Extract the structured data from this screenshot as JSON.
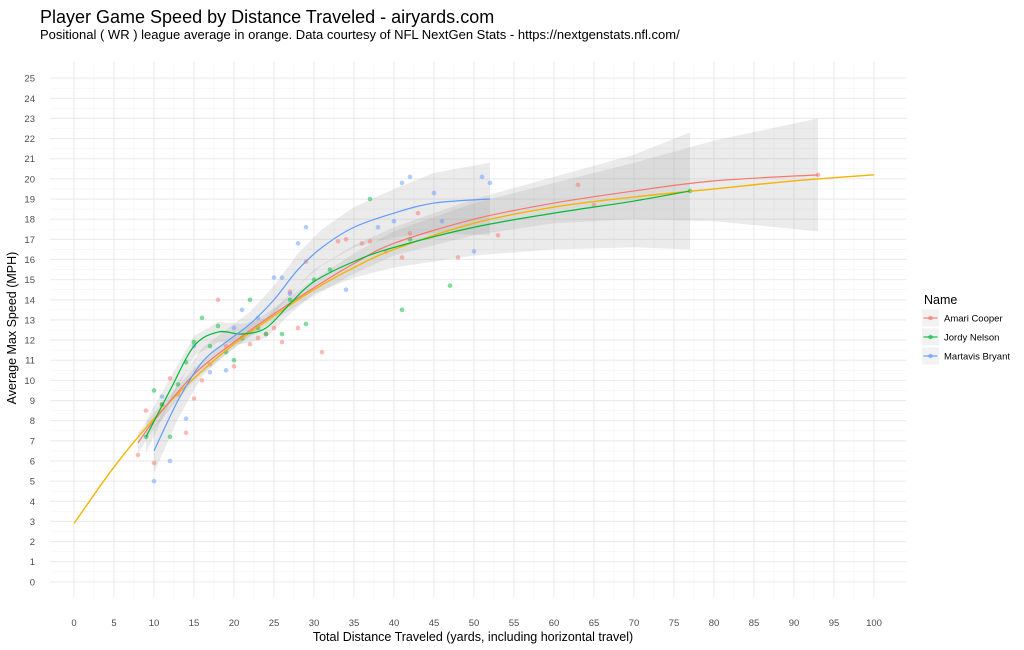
{
  "chart_data": {
    "type": "scatter",
    "title": "Player Game Speed by Distance Traveled - airyards.com",
    "subtitle": "Positional ( WR ) league average in orange. Data courtesy of NFL NextGen Stats - https://nextgenstats.nfl.com/",
    "xlabel": "Total Distance Traveled (yards, including horizontal travel)",
    "ylabel": "Average Max Speed (MPH)",
    "xlim": [
      -3,
      104
    ],
    "ylim": [
      -0.8,
      25.8
    ],
    "x_ticks": [
      0,
      5,
      10,
      15,
      20,
      25,
      30,
      35,
      40,
      45,
      50,
      55,
      60,
      65,
      70,
      75,
      80,
      85,
      90,
      95,
      100
    ],
    "y_ticks": [
      0,
      1,
      2,
      3,
      4,
      5,
      6,
      7,
      8,
      9,
      10,
      11,
      12,
      13,
      14,
      15,
      16,
      17,
      18,
      19,
      20,
      21,
      22,
      23,
      24,
      25
    ],
    "grid": true,
    "legend": {
      "title": "Name",
      "position": "right"
    },
    "league_average": {
      "color": "#F5B400",
      "x": [
        0,
        5,
        10,
        15,
        20,
        25,
        30,
        35,
        40,
        50,
        60,
        70,
        80,
        90,
        100
      ],
      "y": [
        2.9,
        5.7,
        8.1,
        10.1,
        11.8,
        13.2,
        14.5,
        15.6,
        16.5,
        17.8,
        18.6,
        19.1,
        19.5,
        19.9,
        20.2
      ]
    },
    "series": [
      {
        "name": "Amari Cooper",
        "color": "#F8766D",
        "points": [
          [
            8,
            6.3
          ],
          [
            9,
            8.5
          ],
          [
            10,
            5.9
          ],
          [
            11,
            8.8
          ],
          [
            12,
            10.1
          ],
          [
            13,
            9.3
          ],
          [
            14,
            7.4
          ],
          [
            15,
            9.1
          ],
          [
            16,
            10.0
          ],
          [
            17,
            10.8
          ],
          [
            18,
            14.0
          ],
          [
            19,
            11.7
          ],
          [
            20,
            10.7
          ],
          [
            22,
            11.8
          ],
          [
            23,
            12.1
          ],
          [
            24,
            12.3
          ],
          [
            25,
            12.6
          ],
          [
            26,
            11.9
          ],
          [
            27,
            14.4
          ],
          [
            28,
            12.6
          ],
          [
            29,
            15.9
          ],
          [
            31,
            11.4
          ],
          [
            33,
            16.9
          ],
          [
            34,
            17.0
          ],
          [
            36,
            16.8
          ],
          [
            37,
            16.9
          ],
          [
            39,
            16.4
          ],
          [
            41,
            16.1
          ],
          [
            42,
            17.3
          ],
          [
            43,
            18.3
          ],
          [
            48,
            16.1
          ],
          [
            53,
            17.2
          ],
          [
            63,
            19.7
          ],
          [
            65,
            18.7
          ],
          [
            93,
            20.2
          ]
        ],
        "fit": {
          "x": [
            8,
            10,
            15,
            20,
            25,
            30,
            35,
            40,
            50,
            60,
            70,
            80,
            93
          ],
          "y": [
            6.9,
            8.0,
            10.3,
            11.9,
            13.3,
            14.6,
            15.8,
            16.8,
            18.0,
            18.8,
            19.4,
            19.9,
            20.2
          ],
          "band": [
            0.5,
            0.4,
            0.3,
            0.3,
            0.3,
            0.4,
            0.5,
            0.6,
            0.8,
            1.0,
            1.4,
            2.0,
            2.8
          ]
        }
      },
      {
        "name": "Jordy Nelson",
        "color": "#00BA38",
        "points": [
          [
            9,
            7.2
          ],
          [
            10,
            9.5
          ],
          [
            11,
            8.8
          ],
          [
            12,
            7.2
          ],
          [
            13,
            9.8
          ],
          [
            14,
            10.9
          ],
          [
            15,
            11.9
          ],
          [
            16,
            13.1
          ],
          [
            17,
            11.7
          ],
          [
            18,
            12.7
          ],
          [
            19,
            11.4
          ],
          [
            20,
            11.0
          ],
          [
            21,
            12.1
          ],
          [
            22,
            14.0
          ],
          [
            23,
            12.6
          ],
          [
            24,
            12.3
          ],
          [
            26,
            12.3
          ],
          [
            27,
            14.0
          ],
          [
            29,
            12.8
          ],
          [
            30,
            15.0
          ],
          [
            32,
            15.5
          ],
          [
            37,
            19.0
          ],
          [
            41,
            13.5
          ],
          [
            42,
            17.0
          ],
          [
            47,
            14.7
          ],
          [
            77,
            19.4
          ]
        ],
        "fit": {
          "x": [
            9,
            12,
            15,
            18,
            21,
            24,
            27,
            30,
            35,
            40,
            50,
            60,
            70,
            77
          ],
          "y": [
            7.2,
            9.5,
            11.7,
            12.4,
            12.3,
            12.6,
            13.8,
            14.9,
            15.9,
            16.6,
            17.6,
            18.3,
            18.9,
            19.4
          ],
          "band": [
            0.8,
            0.6,
            0.5,
            0.5,
            0.5,
            0.5,
            0.5,
            0.6,
            0.8,
            1.0,
            1.4,
            1.8,
            2.3,
            2.9
          ]
        }
      },
      {
        "name": "Martavis Bryant",
        "color": "#619CFF",
        "points": [
          [
            10,
            5.0
          ],
          [
            11,
            9.2
          ],
          [
            12,
            6.0
          ],
          [
            14,
            8.1
          ],
          [
            15,
            11.7
          ],
          [
            17,
            10.4
          ],
          [
            19,
            10.5
          ],
          [
            20,
            12.6
          ],
          [
            21,
            13.5
          ],
          [
            23,
            13.1
          ],
          [
            25,
            15.1
          ],
          [
            26,
            15.1
          ],
          [
            27,
            14.3
          ],
          [
            28,
            16.8
          ],
          [
            29,
            17.6
          ],
          [
            34,
            14.5
          ],
          [
            38,
            17.6
          ],
          [
            40,
            17.9
          ],
          [
            41,
            19.8
          ],
          [
            42,
            20.1
          ],
          [
            45,
            19.3
          ],
          [
            46,
            17.9
          ],
          [
            50,
            16.4
          ],
          [
            51,
            20.1
          ],
          [
            52,
            19.8
          ]
        ],
        "fit": {
          "x": [
            10,
            13,
            16,
            19,
            22,
            25,
            28,
            31,
            35,
            40,
            45,
            52
          ],
          "y": [
            6.5,
            9.0,
            10.9,
            11.9,
            12.8,
            14.0,
            15.5,
            16.6,
            17.6,
            18.3,
            18.8,
            19.0
          ],
          "band": [
            1.1,
            0.9,
            0.7,
            0.6,
            0.6,
            0.7,
            0.8,
            0.9,
            1.0,
            1.2,
            1.5,
            1.8
          ]
        }
      }
    ]
  }
}
